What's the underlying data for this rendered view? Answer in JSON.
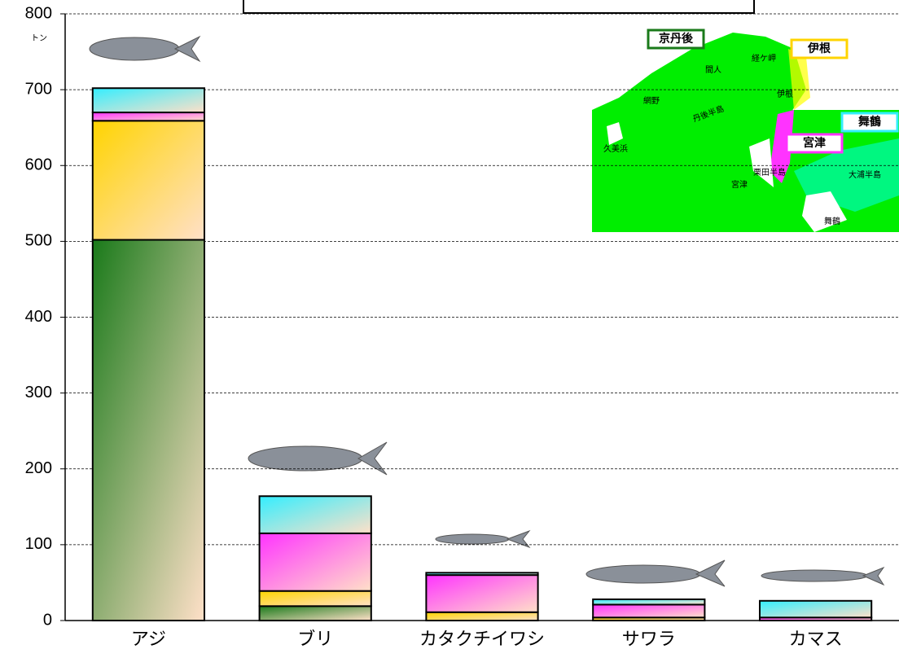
{
  "chart_data": {
    "type": "stacked_bar",
    "y_axis_label": "トン",
    "categories": [
      "アジ",
      "ブリ",
      "カタクチイワシ",
      "サワラ",
      "カマス"
    ],
    "series": [
      {
        "name": "京丹後",
        "color": "#1a7a1a",
        "values": [
          502,
          19,
          0,
          0,
          0
        ]
      },
      {
        "name": "伊根",
        "color": "#ffd400",
        "values": [
          157,
          20,
          11,
          4,
          0
        ]
      },
      {
        "name": "宮津",
        "color": "#ff33ff",
        "values": [
          11,
          76,
          49,
          17,
          4
        ]
      },
      {
        "name": "舞鶴",
        "color": "#33eeff",
        "values": [
          32,
          49,
          3,
          7,
          22
        ]
      }
    ],
    "ylim": [
      0,
      800
    ],
    "yticks": [
      0,
      100,
      200,
      300,
      400,
      500,
      600,
      700,
      800
    ],
    "grid": true,
    "annotations": [
      "間人",
      "経ケ岬",
      "網野",
      "丹後半島",
      "伊根",
      "久美浜",
      "栗田半島",
      "宮津",
      "舞鶴",
      "大浦半島"
    ]
  }
}
